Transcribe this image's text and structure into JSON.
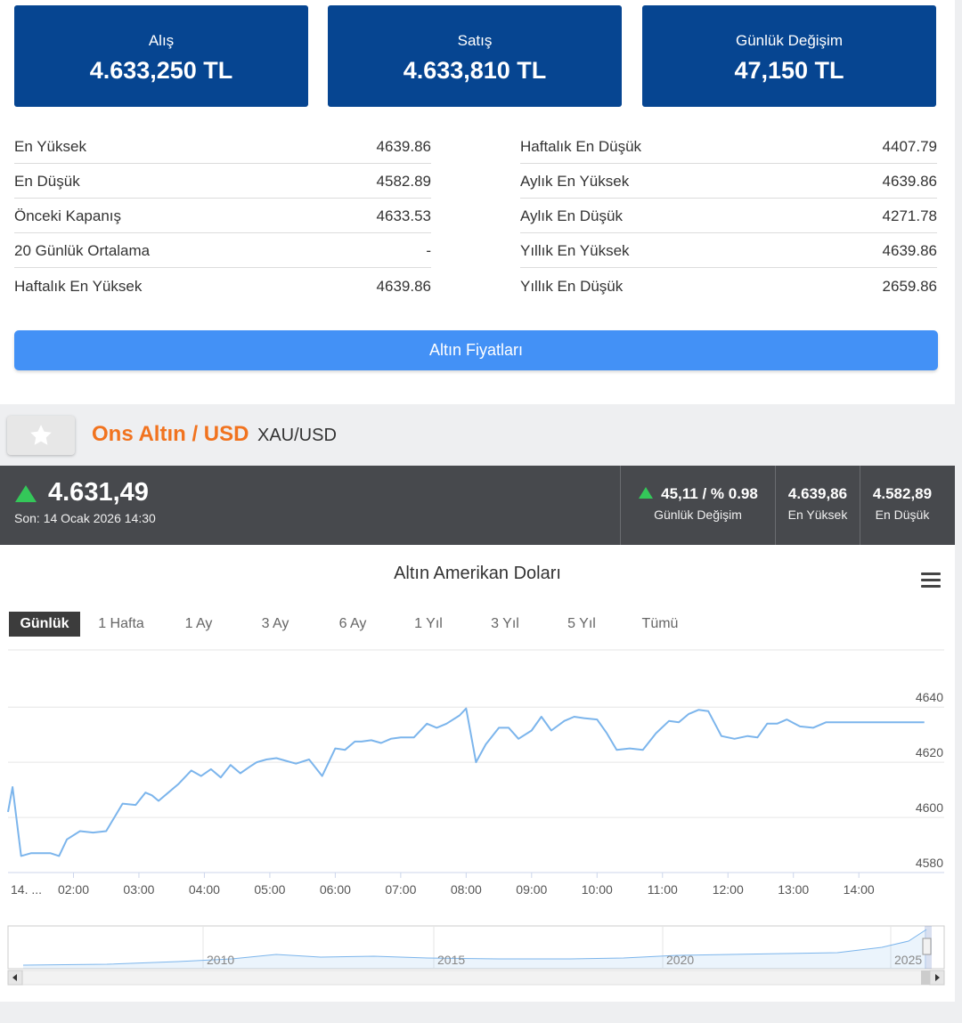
{
  "price_boxes": [
    {
      "label": "Alış",
      "value": "4.633,250 TL"
    },
    {
      "label": "Satış",
      "value": "4.633,810 TL"
    },
    {
      "label": "Günlük Değişim",
      "value": "47,150 TL"
    }
  ],
  "stats_left": [
    {
      "label": "En Yüksek",
      "value": "4639.86"
    },
    {
      "label": "En Düşük",
      "value": "4582.89"
    },
    {
      "label": "Önceki Kapanış",
      "value": "4633.53"
    },
    {
      "label": "20 Günlük Ortalama",
      "value": "-"
    },
    {
      "label": "Haftalık En Yüksek",
      "value": "4639.86"
    }
  ],
  "stats_right": [
    {
      "label": "Haftalık En Düşük",
      "value": "4407.79"
    },
    {
      "label": "Aylık En Yüksek",
      "value": "4639.86"
    },
    {
      "label": "Aylık En Düşük",
      "value": "4271.78"
    },
    {
      "label": "Yıllık En Yüksek",
      "value": "4639.86"
    },
    {
      "label": "Yıllık En Düşük",
      "value": "2659.86"
    }
  ],
  "prices_button_label": "Altın Fiyatları",
  "instrument": {
    "title": "Ons Altın / USD",
    "code": "XAU/USD",
    "fav_icon": "star-icon"
  },
  "ticker": {
    "price": "4.631,49",
    "last_update": "Son: 14 Ocak 2026 14:30",
    "trend": "up",
    "up_color": "#34c759",
    "daily_change_value": "45,11 / % 0.98",
    "daily_change_label": "Günlük Değişim",
    "high_value": "4.639,86",
    "high_label": "En Yüksek",
    "low_value": "4.582,89",
    "low_label": "En Düşük"
  },
  "chart": {
    "title": "Altın Amerikan Doları",
    "menu_icon": "hamburger-menu-icon",
    "ranges": [
      "Günlük",
      "1 Hafta",
      "1 Ay",
      "3 Ay",
      "6 Ay",
      "1 Yıl",
      "3 Yıl",
      "5 Yıl",
      "Tümü"
    ],
    "active_range": "Günlük",
    "line_color": "#7cb5ec"
  },
  "chart_data": {
    "type": "line",
    "title": "Altın Amerikan Doları",
    "x_labels": [
      "14. ...",
      "02:00",
      "03:00",
      "04:00",
      "05:00",
      "06:00",
      "07:00",
      "08:00",
      "09:00",
      "10:00",
      "11:00",
      "12:00",
      "13:00",
      "14:00"
    ],
    "y_ticks": [
      4580,
      4600,
      4620,
      4640
    ],
    "ylim": [
      4580,
      4645
    ],
    "x_unit": "hours from 01:00",
    "series": [
      {
        "x": [
          0,
          0.07,
          0.2,
          0.35,
          0.5,
          0.65,
          0.78,
          0.9,
          1.1,
          1.3,
          1.5,
          1.75,
          1.95,
          2.1,
          2.2,
          2.3,
          2.45,
          2.6,
          2.8,
          2.95,
          3.1,
          3.25,
          3.4,
          3.55,
          3.7,
          3.8,
          3.95,
          4.1,
          4.25,
          4.4,
          4.6,
          4.8,
          5.0,
          5.15,
          5.3,
          5.4,
          5.55,
          5.7,
          5.85,
          6.0,
          6.2,
          6.4,
          6.55,
          6.7,
          6.9,
          7.0,
          7.15,
          7.3,
          7.5,
          7.65,
          7.8,
          8.0,
          8.15,
          8.3,
          8.5,
          8.65,
          8.8,
          9.0,
          9.15,
          9.3,
          9.5,
          9.7,
          9.9,
          10.1,
          10.25,
          10.4,
          10.55,
          10.7,
          10.9,
          11.1,
          11.3,
          11.45,
          11.6,
          11.75,
          11.9,
          12.1,
          12.3,
          12.5,
          12.65,
          12.85,
          13.0,
          13.2,
          13.4,
          13.6,
          13.8,
          13.95,
          14.0
        ],
        "y": [
          4602,
          4611,
          4586,
          4587,
          4587,
          4587,
          4586,
          4592,
          4595,
          4594.5,
          4595,
          4605,
          4604.5,
          4609,
          4608,
          4606,
          4609,
          4612,
          4617,
          4615,
          4617.5,
          4614.5,
          4619,
          4616,
          4618.5,
          4620,
          4621,
          4621.5,
          4620.5,
          4619.5,
          4621,
          4615,
          4625,
          4624.5,
          4627.5,
          4627.5,
          4628,
          4627,
          4628.5,
          4629,
          4629,
          4634,
          4632.5,
          4634,
          4637,
          4639.5,
          4620,
          4626.5,
          4632.5,
          4632.5,
          4628.5,
          4631.5,
          4636.5,
          4631.5,
          4635,
          4636.5,
          4636,
          4635.5,
          4630.5,
          4624.5,
          4625,
          4624.5,
          4630.5,
          4635,
          4634.5,
          4637.5,
          4639,
          4638.5,
          4629.5,
          4628.5,
          4629.5,
          4629,
          4634,
          4634,
          4635.5,
          4633,
          4632.5,
          4634.5,
          4634.5,
          4634.5,
          4634.5,
          4634.5,
          4634.5,
          4634.5,
          4634.5,
          4634.5,
          4634.5
        ]
      }
    ],
    "navigator": {
      "x_labels": [
        "2010",
        "2015",
        "2020",
        "2025"
      ]
    }
  }
}
